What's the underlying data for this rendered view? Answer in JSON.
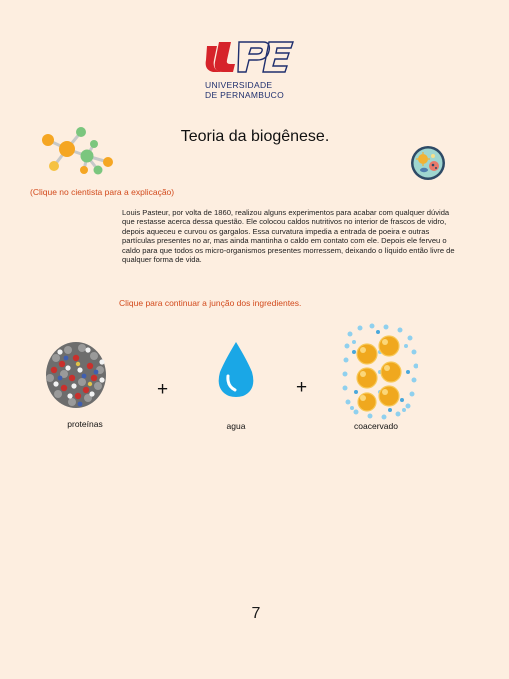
{
  "header": {
    "logo_lines": [
      "UNIVERSIDADE",
      "DE PERNAMBUCO"
    ],
    "title": "Teoria da biogênese."
  },
  "hints": {
    "scientist": "(Clique no cientista para a explicação)",
    "continue": "Clique para continuar a junção dos ingredientes."
  },
  "explanation": "Louis Pasteur, por volta de 1860, realizou alguns experimentos para acabar com qualquer dúvida que restasse acerca dessa questão. Ele colocou caldos nutritivos no interior de frascos de vidro, depois aqueceu e curvou os gargalos. Essa curvatura impedia a entrada de poeira e outras partículas presentes no ar, mas ainda mantinha o caldo em contato com ele. Depois ele ferveu o caldo para que todos os micro-organismos presentes morressem, deixando o líquido então livre de qualquer forma de vida.",
  "ingredients": {
    "items": [
      {
        "label": "proteínas",
        "icon": "protein-molecule-icon"
      },
      {
        "label": "agua",
        "icon": "water-drop-icon"
      },
      {
        "label": "coacervado",
        "icon": "coacervate-icon"
      }
    ],
    "operators": [
      "+",
      "+"
    ]
  },
  "page_number": "7",
  "colors": {
    "background": "#fdeee0",
    "hint": "#d24a1c",
    "logo_red": "#d6232a",
    "logo_blue": "#1f2f6e",
    "water": "#1aa7e6"
  }
}
